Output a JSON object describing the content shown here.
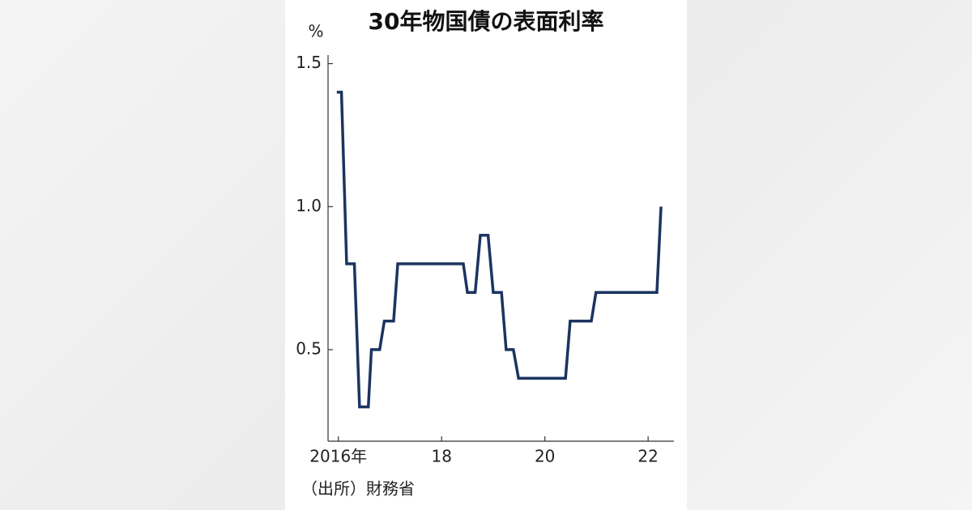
{
  "chart_data": {
    "type": "line",
    "title": "30年物国債の表面利率",
    "y_unit": "%",
    "source": "（出所）財務省",
    "x": [
      2015.97,
      2016.06,
      2016.16,
      2016.31,
      2016.41,
      2016.58,
      2016.64,
      2016.8,
      2016.89,
      2017.07,
      2017.15,
      2018.42,
      2018.5,
      2018.65,
      2018.75,
      2018.9,
      2019.0,
      2019.16,
      2019.25,
      2019.39,
      2019.49,
      2020.4,
      2020.49,
      2020.9,
      2020.99,
      2022.17,
      2022.25
    ],
    "values": [
      1.4,
      1.4,
      0.8,
      0.8,
      0.3,
      0.3,
      0.5,
      0.5,
      0.6,
      0.6,
      0.8,
      0.8,
      0.7,
      0.7,
      0.9,
      0.9,
      0.7,
      0.7,
      0.5,
      0.5,
      0.4,
      0.4,
      0.6,
      0.6,
      0.7,
      0.7,
      1.0
    ],
    "color": "#1b3461",
    "xlim": [
      2015.8,
      2022.5
    ],
    "xticks": [
      {
        "value": 2016,
        "label": "2016年"
      },
      {
        "value": 2018,
        "label": "18"
      },
      {
        "value": 2020,
        "label": "20"
      },
      {
        "value": 2022,
        "label": "22"
      }
    ],
    "ylim": [
      0.18,
      1.53
    ],
    "yticks": [
      0.5,
      {
        "value": 1.0,
        "label": "1.0"
      },
      1.5
    ]
  }
}
